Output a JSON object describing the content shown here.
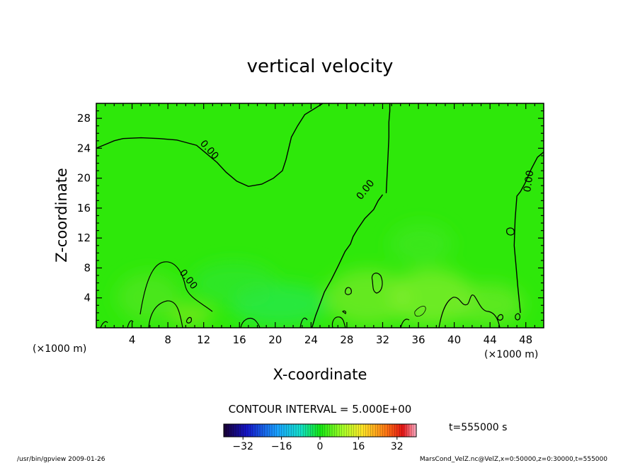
{
  "chart_data": {
    "type": "heatmap",
    "title": "vertical velocity",
    "xlabel": "X-coordinate",
    "ylabel": "Z-coordinate",
    "x_unit_left": "(×1000 m)",
    "x_unit_right": "(×1000 m)",
    "xlim": [
      0,
      50
    ],
    "ylim": [
      0,
      30
    ],
    "x_ticks": [
      "4",
      "8",
      "12",
      "16",
      "20",
      "24",
      "28",
      "32",
      "36",
      "40",
      "44",
      "48"
    ],
    "y_ticks": [
      "4",
      "8",
      "12",
      "16",
      "20",
      "24",
      "28"
    ],
    "contour_labels": [
      "0.00",
      "0.00",
      "0.00",
      "0.00"
    ],
    "contour_interval": "CONTOUR INTERVAL = 5.000E+00",
    "time_label": "t=555000 s",
    "colorbar_ticks": [
      "−32",
      "−16",
      "0",
      "16",
      "32"
    ],
    "colorbar_range": [
      -40,
      40
    ],
    "field_background_color": "#2ee80a",
    "footer_left": "/usr/bin/gpview  2009-01-26",
    "footer_right": "MarsCond_VelZ.nc@VelZ,x=0:50000,z=0:30000,t=555000",
    "zero_contour_x_values": [
      [
        0,
        1,
        2,
        3,
        5,
        7,
        9,
        11.2,
        12.2,
        13.5,
        14.5,
        15.7,
        17,
        18.5,
        19.8,
        20.8,
        21.2,
        21.5,
        21.8,
        22.5,
        23.3,
        24.8,
        25.2,
        25.3
      ],
      [
        32,
        31.5,
        31,
        30,
        29.2,
        28.7,
        28.4,
        27.8,
        27,
        26.3,
        25.5,
        25,
        24.5,
        24.1
      ],
      [
        32.4,
        32.5,
        32.6,
        32.7,
        32.7,
        32.8,
        32.8
      ],
      [
        50,
        49.3,
        48.6,
        47.9,
        47.4,
        47,
        46.8,
        46.7,
        46.9,
        47.1,
        47.4
      ]
    ],
    "zero_contour_z_values": [
      [
        24,
        24.5,
        25,
        25.3,
        25.4,
        25.3,
        25.1,
        24.4,
        23.4,
        22.1,
        20.8,
        19.6,
        18.9,
        19.2,
        20,
        21,
        22.5,
        24,
        25.5,
        27,
        28.5,
        29.6,
        29.9,
        30
      ],
      [
        17.8,
        17,
        15.8,
        14.6,
        13.2,
        12.2,
        11.2,
        10.2,
        8.2,
        6.5,
        4.8,
        3.2,
        1.6,
        0
      ],
      [
        18,
        20.5,
        23,
        25.5,
        27.5,
        29,
        30
      ],
      [
        23.5,
        22.8,
        21.2,
        19.3,
        18.2,
        17.6,
        14.5,
        11,
        8.4,
        5.6,
        2
      ]
    ]
  }
}
